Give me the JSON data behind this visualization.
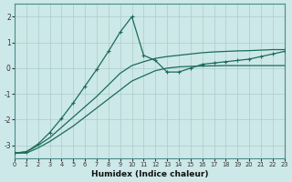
{
  "xlabel": "Humidex (Indice chaleur)",
  "bg_color": "#cde8e8",
  "grid_color": "#aacccc",
  "line_color": "#1a6b5a",
  "xlim": [
    0,
    23
  ],
  "ylim": [
    -3.5,
    2.5
  ],
  "yticks": [
    -3,
    -2,
    -1,
    0,
    1,
    2
  ],
  "xticks": [
    0,
    1,
    2,
    3,
    4,
    5,
    6,
    7,
    8,
    9,
    10,
    11,
    12,
    13,
    14,
    15,
    16,
    17,
    18,
    19,
    20,
    21,
    22,
    23
  ],
  "line_straight1_x": [
    0,
    1,
    2,
    3,
    4,
    5,
    6,
    7,
    8,
    9,
    10,
    11,
    12,
    13,
    14,
    15,
    16,
    17,
    18,
    19,
    20,
    21,
    22,
    23
  ],
  "line_straight1_y": [
    -3.3,
    -3.3,
    -3.1,
    -2.85,
    -2.55,
    -2.25,
    -1.9,
    -1.55,
    -1.2,
    -0.85,
    -0.5,
    -0.3,
    -0.1,
    0.0,
    0.05,
    0.07,
    0.08,
    0.09,
    0.1,
    0.1,
    0.1,
    0.1,
    0.1,
    0.1
  ],
  "line_straight2_x": [
    0,
    1,
    2,
    3,
    4,
    5,
    6,
    7,
    8,
    9,
    10,
    11,
    12,
    13,
    14,
    15,
    16,
    17,
    18,
    19,
    20,
    21,
    22,
    23
  ],
  "line_straight2_y": [
    -3.3,
    -3.25,
    -3.0,
    -2.7,
    -2.3,
    -1.9,
    -1.5,
    -1.1,
    -0.65,
    -0.2,
    0.1,
    0.25,
    0.38,
    0.45,
    0.5,
    0.55,
    0.6,
    0.63,
    0.65,
    0.67,
    0.68,
    0.7,
    0.72,
    0.72
  ],
  "line_curve_x": [
    0,
    1,
    2,
    3,
    4,
    5,
    6,
    7,
    8,
    9,
    10,
    11,
    12,
    13,
    14,
    15,
    16,
    17,
    18,
    19,
    20,
    21,
    22,
    23
  ],
  "line_curve_y": [
    -3.3,
    -3.25,
    -2.95,
    -2.5,
    -1.95,
    -1.35,
    -0.7,
    -0.05,
    0.65,
    1.4,
    2.0,
    0.5,
    0.3,
    -0.15,
    -0.15,
    0.0,
    0.15,
    0.2,
    0.25,
    0.3,
    0.35,
    0.45,
    0.55,
    0.65
  ]
}
